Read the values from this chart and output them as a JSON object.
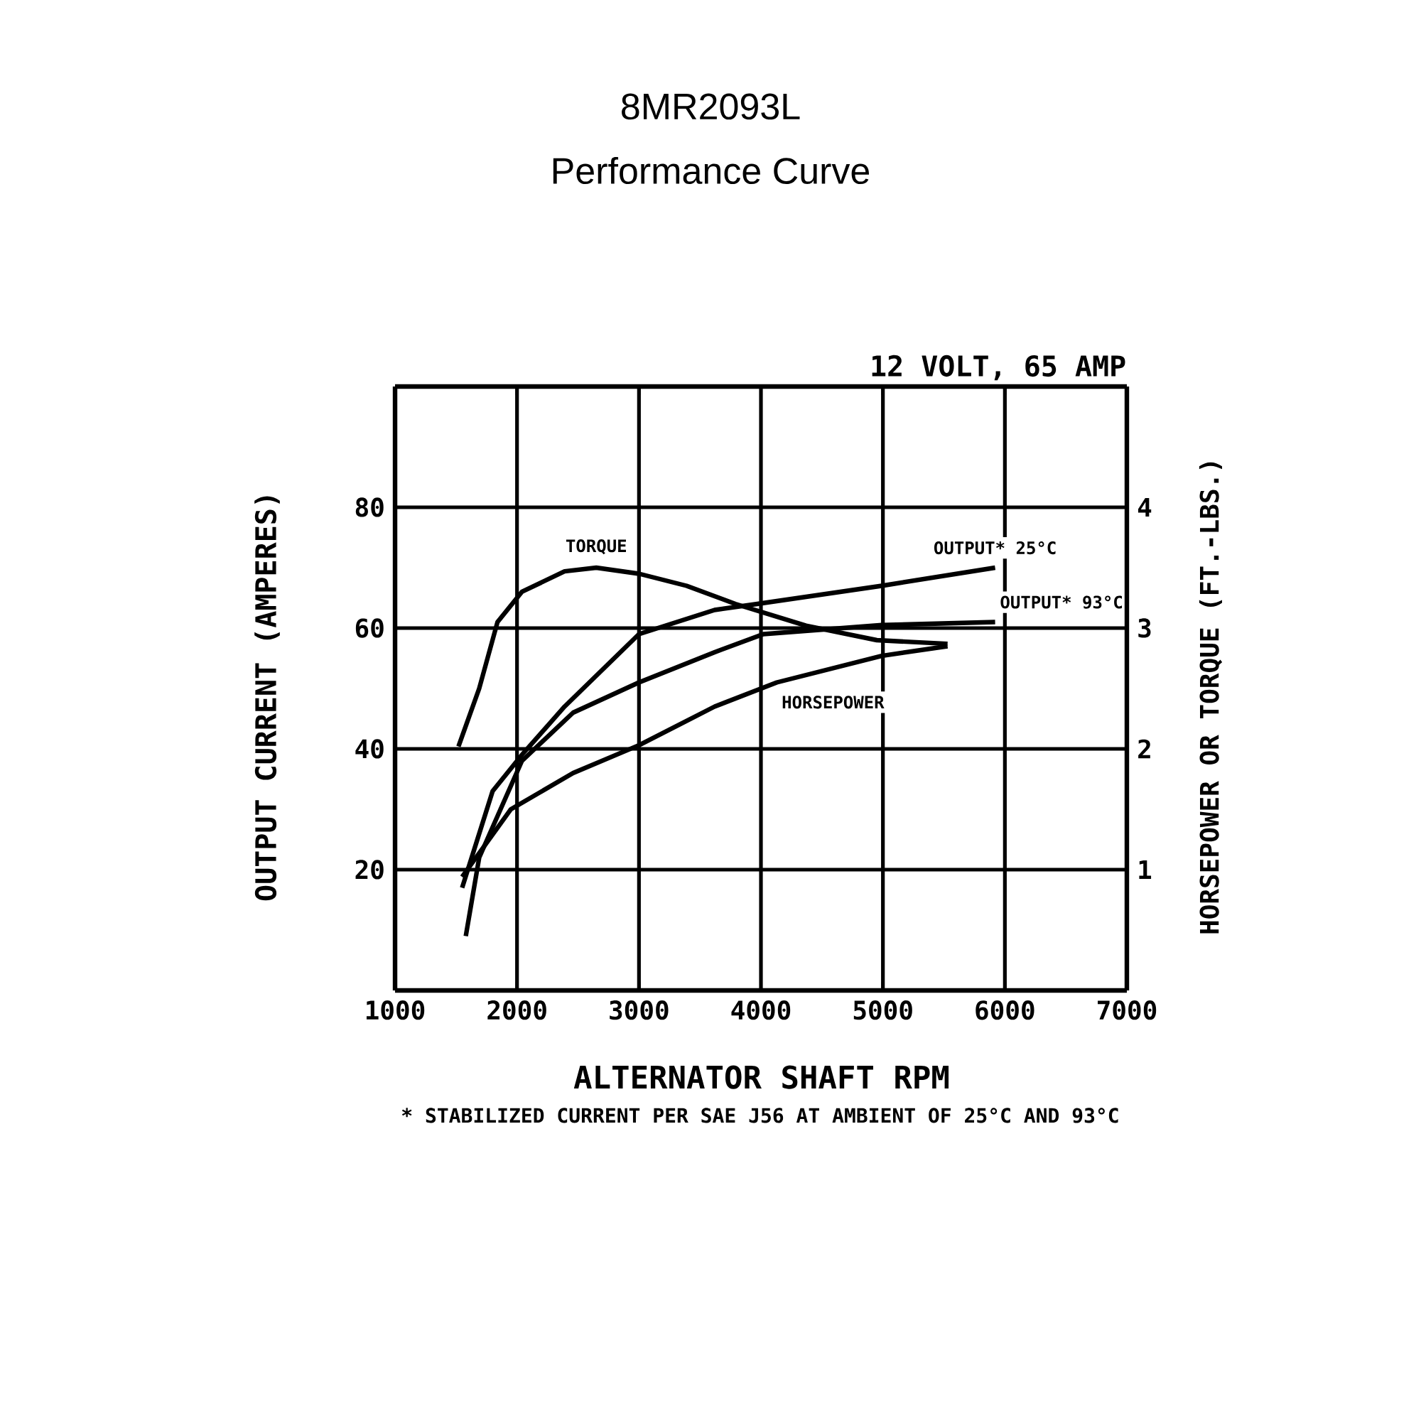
{
  "chart_data": {
    "type": "line",
    "title": "8MR2093L",
    "subtitle": "Performance Curve",
    "xlabel": "ALTERNATOR SHAFT RPM",
    "ylabel": "OUTPUT CURRENT (AMPERES)",
    "y2label": "HORSEPOWER OR TORQUE (FT.-LBS.)",
    "annotations": [
      "12 VOLT, 65 AMP",
      "* STABILIZED CURRENT PER SAE J56 AT AMBIENT OF 25°C AND 93°C"
    ],
    "xlim": [
      1000,
      7000
    ],
    "xticks": [
      1000,
      2000,
      3000,
      4000,
      5000,
      6000,
      7000
    ],
    "ylim": [
      0,
      100
    ],
    "yticks": [
      {
        "value": 0,
        "label": null
      },
      20,
      40,
      60,
      80,
      {
        "value": 100,
        "label": null
      }
    ],
    "y2lim": [
      0,
      5
    ],
    "y2ticks": [
      {
        "value": 0,
        "label": null
      },
      1,
      2,
      3,
      4,
      {
        "value": 5,
        "label": null
      }
    ],
    "grid": true,
    "series": [
      {
        "name": "TORQUE",
        "color": "#000000",
        "axis": "y2",
        "x": [
          1520,
          1690,
          1840,
          2040,
          2390,
          2650,
          3000,
          3390,
          3790,
          4370,
          4950,
          5530
        ],
        "values": [
          2.02,
          2.5,
          3.05,
          3.3,
          3.47,
          3.5,
          3.45,
          3.35,
          3.2,
          3.02,
          2.9,
          2.87
        ]
      },
      {
        "name": "OUTPUT* 25°C",
        "color": "#000000",
        "x": [
          1550,
          1800,
          2040,
          2390,
          3000,
          3620,
          3970,
          4990,
          5920
        ],
        "values": [
          17,
          33,
          39,
          47,
          59,
          63,
          64,
          67,
          70
        ]
      },
      {
        "name": "OUTPUT* 93°C",
        "color": "#000000",
        "x": [
          1580,
          1690,
          2040,
          2460,
          3000,
          3620,
          4020,
          4990,
          5920
        ],
        "values": [
          9,
          22,
          38,
          46,
          51,
          56,
          59,
          60.5,
          61
        ]
      },
      {
        "name": "HORSEPOWER",
        "color": "#000000",
        "axis": "y2",
        "x": [
          1550,
          1950,
          2460,
          3000,
          3620,
          4130,
          4990,
          5530
        ],
        "values": [
          0.94,
          1.5,
          1.8,
          2.03,
          2.35,
          2.55,
          2.77,
          2.85
        ]
      }
    ]
  }
}
